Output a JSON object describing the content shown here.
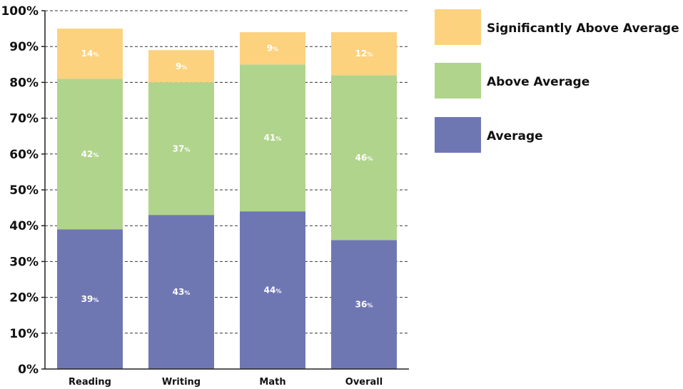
{
  "chart_data": {
    "type": "bar",
    "stacked": true,
    "categories": [
      "Reading",
      "Writing",
      "Math",
      "Overall"
    ],
    "series": [
      {
        "name": "Average",
        "values": [
          39,
          43,
          44,
          36
        ],
        "color": "#6f77b3"
      },
      {
        "name": "Above Average",
        "values": [
          42,
          37,
          41,
          46
        ],
        "color": "#b0d48b"
      },
      {
        "name": "Significantly Above Average",
        "values": [
          14,
          9,
          9,
          12
        ],
        "color": "#fcd27f"
      }
    ],
    "data_labels": [
      [
        "39",
        "43",
        "44",
        "36"
      ],
      [
        "42",
        "37",
        "41",
        "46"
      ],
      [
        "14",
        "9",
        "9",
        "12"
      ]
    ],
    "data_label_suffix": "%",
    "y_ticks": [
      "0%",
      "10%",
      "20%",
      "30%",
      "40%",
      "50%",
      "60%",
      "70%",
      "80%",
      "90%",
      "100%"
    ],
    "ylim": [
      0,
      100
    ],
    "grid": "horizontal dashed",
    "legend": {
      "position": "right",
      "order": [
        "Significantly Above Average",
        "Above Average",
        "Average"
      ]
    },
    "title": "",
    "xlabel": "",
    "ylabel": ""
  }
}
